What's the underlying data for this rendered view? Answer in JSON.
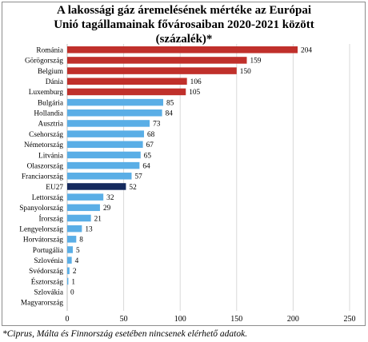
{
  "title_lines": [
    "A lakossági gáz áremelésének mértéke az Európai",
    "Unió tagállamainak fővárosaiban 2020-2021 között",
    "(százalék)*"
  ],
  "footnote": "*Ciprus, Málta és Finnország esetében nincsenek elérhető adatok.",
  "colors": {
    "top": "#c0302b",
    "regular": "#5aaee6",
    "eu": "#152a5e"
  },
  "chart_data": {
    "type": "bar",
    "orientation": "horizontal",
    "categories": [
      "Románia",
      "Görögország",
      "Belgium",
      "Dánia",
      "Luxemburg",
      "Bulgária",
      "Hollandia",
      "Ausztria",
      "Csehország",
      "Németország",
      "Litvánia",
      "Olaszország",
      "Franciaország",
      "EU27",
      "Lettország",
      "Spanyolország",
      "Írország",
      "Lengyelország",
      "Horvátország",
      "Portugália",
      "Szlovénia",
      "Svédország",
      "Észtország",
      "Szlovákia",
      "Magyarország"
    ],
    "values": [
      204,
      159,
      150,
      106,
      105,
      85,
      84,
      73,
      68,
      67,
      65,
      64,
      57,
      52,
      32,
      29,
      21,
      13,
      8,
      5,
      4,
      2,
      1,
      0,
      null
    ],
    "value_labels": [
      "204",
      "159",
      "150",
      "106",
      "105",
      "85",
      "84",
      "73",
      "68",
      "67",
      "65",
      "64",
      "57",
      "52",
      "32",
      "29",
      "21",
      "13",
      "8",
      "5",
      "4",
      "2",
      "1",
      "0",
      ""
    ],
    "color_groups": [
      "top",
      "top",
      "top",
      "top",
      "top",
      "regular",
      "regular",
      "regular",
      "regular",
      "regular",
      "regular",
      "regular",
      "regular",
      "eu",
      "regular",
      "regular",
      "regular",
      "regular",
      "regular",
      "regular",
      "regular",
      "regular",
      "regular",
      "regular",
      "regular"
    ],
    "xlim": [
      0,
      250
    ],
    "xticks": [
      "0",
      "50",
      "100",
      "150",
      "200",
      "250"
    ],
    "grid": "vertical"
  }
}
